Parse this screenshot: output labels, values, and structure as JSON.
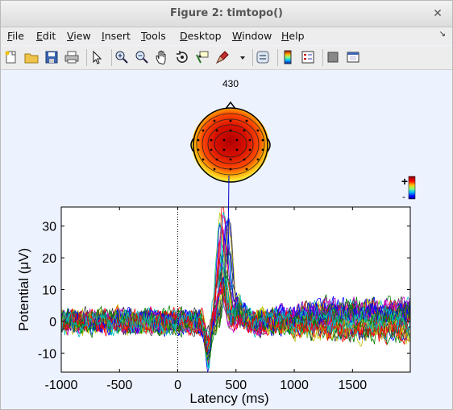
{
  "window": {
    "title": "Figure 2:  timtopo()"
  },
  "menu": [
    {
      "name": "file",
      "label": "File",
      "u": "F",
      "rest": "ile"
    },
    {
      "name": "edit",
      "label": "Edit",
      "u": "E",
      "rest": "dit"
    },
    {
      "name": "view",
      "label": "View",
      "u": "V",
      "rest": "iew"
    },
    {
      "name": "insert",
      "label": "Insert",
      "u": "I",
      "rest": "nsert"
    },
    {
      "name": "tools",
      "label": "Tools",
      "u": "T",
      "rest": "ools"
    },
    {
      "name": "desktop",
      "label": "Desktop",
      "u": "D",
      "rest": "esktop"
    },
    {
      "name": "window",
      "label": "Window",
      "u": "W",
      "rest": "indow"
    },
    {
      "name": "help",
      "label": "Help",
      "u": "H",
      "rest": "elp"
    }
  ],
  "menu_arrow": "↘",
  "toolbar": [
    {
      "name": "new-figure-icon",
      "icon": "new"
    },
    {
      "name": "open-file-icon",
      "icon": "open"
    },
    {
      "name": "save-icon",
      "icon": "save"
    },
    {
      "name": "print-icon",
      "icon": "print"
    },
    {
      "name": "sep"
    },
    {
      "name": "edit-plot-icon",
      "icon": "arrow"
    },
    {
      "name": "sep"
    },
    {
      "name": "zoom-in-icon",
      "icon": "zoomin"
    },
    {
      "name": "zoom-out-icon",
      "icon": "zoomout"
    },
    {
      "name": "pan-icon",
      "icon": "pan"
    },
    {
      "name": "rotate-3d-icon",
      "icon": "rotate"
    },
    {
      "name": "data-cursor-icon",
      "icon": "cursor"
    },
    {
      "name": "brush-icon",
      "icon": "brush"
    },
    {
      "name": "brush-dropdown-icon",
      "icon": "dropdown"
    },
    {
      "name": "sep"
    },
    {
      "name": "link-plot-icon",
      "icon": "link"
    },
    {
      "name": "sep"
    },
    {
      "name": "insert-colorbar-icon",
      "icon": "colorbar"
    },
    {
      "name": "insert-legend-icon",
      "icon": "legend"
    },
    {
      "name": "sep"
    },
    {
      "name": "hide-plot-tools-icon",
      "icon": "hide"
    },
    {
      "name": "show-plot-tools-icon",
      "icon": "show"
    }
  ],
  "topo": {
    "latency_label": "430"
  },
  "colorbar": {
    "plus": "+",
    "minus": "-"
  },
  "chart_data": {
    "type": "line",
    "xlabel": "Latency (ms)",
    "ylabel": "Potential (μV)",
    "xlim": [
      -1000,
      1996
    ],
    "ylim": [
      -16,
      36
    ],
    "xticks": [
      -1000,
      -500,
      0,
      500,
      1000,
      1500
    ],
    "yticks": [
      -10,
      0,
      10,
      20,
      30
    ],
    "zero_marker_ms": 0,
    "topo_latency_ms": 430,
    "n_channels": 32,
    "series_note_values_ms": [
      -1000,
      0,
      200,
      300,
      400,
      430,
      500,
      800,
      1500,
      1996
    ],
    "peak_uv": 35
  }
}
